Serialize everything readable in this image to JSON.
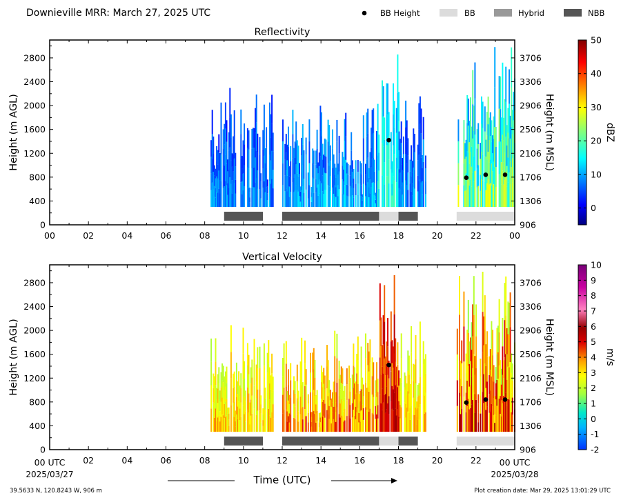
{
  "header": {
    "title": "Downieville MRR:  March 27, 2025 UTC",
    "legend": [
      {
        "label": "BB Height",
        "marker": "dot",
        "color": "#000000"
      },
      {
        "label": "BB",
        "marker": "patch",
        "color": "#dcdcdc"
      },
      {
        "label": "Hybrid",
        "marker": "patch",
        "color": "#999999"
      },
      {
        "label": "NBB",
        "marker": "patch",
        "color": "#555555"
      }
    ]
  },
  "footer": {
    "location": "39.5633 N, 120.8243 W, 906 m",
    "creation": "Plot creation date: Mar 29, 2025 13:01:29 UTC",
    "xlabel": "Time (UTC)",
    "start_label": "00 UTC",
    "start_date": "2025/03/27",
    "end_label": "00 UTC",
    "end_date": "2025/03/28"
  },
  "chart_data": [
    {
      "type": "heatmap",
      "title": "Reflectivity",
      "xlabel": "Time (UTC)",
      "ylabel": "Height (m AGL)",
      "y2label": "Height (m MSL)",
      "xlim": [
        0,
        24
      ],
      "ylim": [
        0,
        3100
      ],
      "xticks": [
        "00",
        "02",
        "04",
        "06",
        "08",
        "10",
        "12",
        "14",
        "16",
        "18",
        "20",
        "22",
        "00"
      ],
      "yticks": [
        0,
        400,
        800,
        1200,
        1600,
        2000,
        2400,
        2800
      ],
      "y2ticks": [
        "906",
        "1306",
        "1706",
        "2106",
        "2506",
        "2906",
        "3306",
        "3706"
      ],
      "colorbar": {
        "label": "dBZ",
        "min": -5,
        "max": 50,
        "ticks": [
          0,
          10,
          20,
          30,
          40,
          50
        ],
        "colormap": "jet"
      },
      "bb_height": [
        {
          "time": 17.5,
          "height": 1420
        },
        {
          "time": 21.5,
          "height": 790
        },
        {
          "time": 22.5,
          "height": 840
        },
        {
          "time": 23.5,
          "height": 840
        }
      ],
      "bb_type": [
        {
          "start": 9.0,
          "end": 11.0,
          "type": "NBB"
        },
        {
          "start": 12.0,
          "end": 17.0,
          "type": "NBB"
        },
        {
          "start": 17.0,
          "end": 18.0,
          "type": "BB"
        },
        {
          "start": 18.0,
          "end": 19.0,
          "type": "NBB"
        },
        {
          "start": 21.0,
          "end": 24.0,
          "type": "BB"
        }
      ],
      "echo_periods": [
        {
          "start": 8.3,
          "end": 11.5,
          "top": 2300,
          "min_value": 0,
          "max_value": 12
        },
        {
          "start": 12.0,
          "end": 16.9,
          "top": 2000,
          "min_value": 2,
          "max_value": 15
        },
        {
          "start": 16.9,
          "end": 18.0,
          "top": 3000,
          "min_value": 8,
          "max_value": 20
        },
        {
          "start": 18.0,
          "end": 19.4,
          "top": 2200,
          "min_value": 0,
          "max_value": 13
        },
        {
          "start": 21.0,
          "end": 24.0,
          "top": 3000,
          "min_value": 5,
          "max_value": 30
        }
      ]
    },
    {
      "type": "heatmap",
      "title": "Vertical Velocity",
      "xlabel": "Time (UTC)",
      "ylabel": "Height (m AGL)",
      "y2label": "Height (m MSL)",
      "xlim": [
        0,
        24
      ],
      "ylim": [
        0,
        3100
      ],
      "xticks": [
        "00",
        "02",
        "04",
        "06",
        "08",
        "10",
        "12",
        "14",
        "16",
        "18",
        "20",
        "22",
        "00"
      ],
      "yticks": [
        0,
        400,
        800,
        1200,
        1600,
        2000,
        2400,
        2800
      ],
      "y2ticks": [
        "906",
        "1306",
        "1706",
        "2106",
        "2506",
        "2906",
        "3306",
        "3706"
      ],
      "colorbar": {
        "label": "m/s",
        "min": -2,
        "max": 10,
        "ticks": [
          -2,
          -1,
          0,
          1,
          2,
          3,
          4,
          5,
          6,
          7,
          8,
          9,
          10
        ],
        "colormap": "velocity"
      },
      "bb_height": [
        {
          "time": 17.5,
          "height": 1420
        },
        {
          "time": 21.5,
          "height": 790
        },
        {
          "time": 22.5,
          "height": 840
        },
        {
          "time": 23.5,
          "height": 840
        }
      ],
      "bb_type": [
        {
          "start": 9.0,
          "end": 11.0,
          "type": "NBB"
        },
        {
          "start": 12.0,
          "end": 17.0,
          "type": "NBB"
        },
        {
          "start": 17.0,
          "end": 18.0,
          "type": "BB"
        },
        {
          "start": 18.0,
          "end": 19.0,
          "type": "NBB"
        },
        {
          "start": 21.0,
          "end": 24.0,
          "type": "BB"
        }
      ],
      "echo_periods": [
        {
          "start": 8.3,
          "end": 11.5,
          "top": 2100,
          "min_value": 1.5,
          "max_value": 4
        },
        {
          "start": 12.0,
          "end": 16.9,
          "top": 2000,
          "min_value": 1.5,
          "max_value": 5
        },
        {
          "start": 16.9,
          "end": 18.0,
          "top": 3000,
          "min_value": 3,
          "max_value": 6
        },
        {
          "start": 18.0,
          "end": 19.4,
          "top": 2200,
          "min_value": 1.5,
          "max_value": 4
        },
        {
          "start": 21.0,
          "end": 24.0,
          "top": 3000,
          "min_value": 1,
          "max_value": 6
        }
      ]
    }
  ]
}
